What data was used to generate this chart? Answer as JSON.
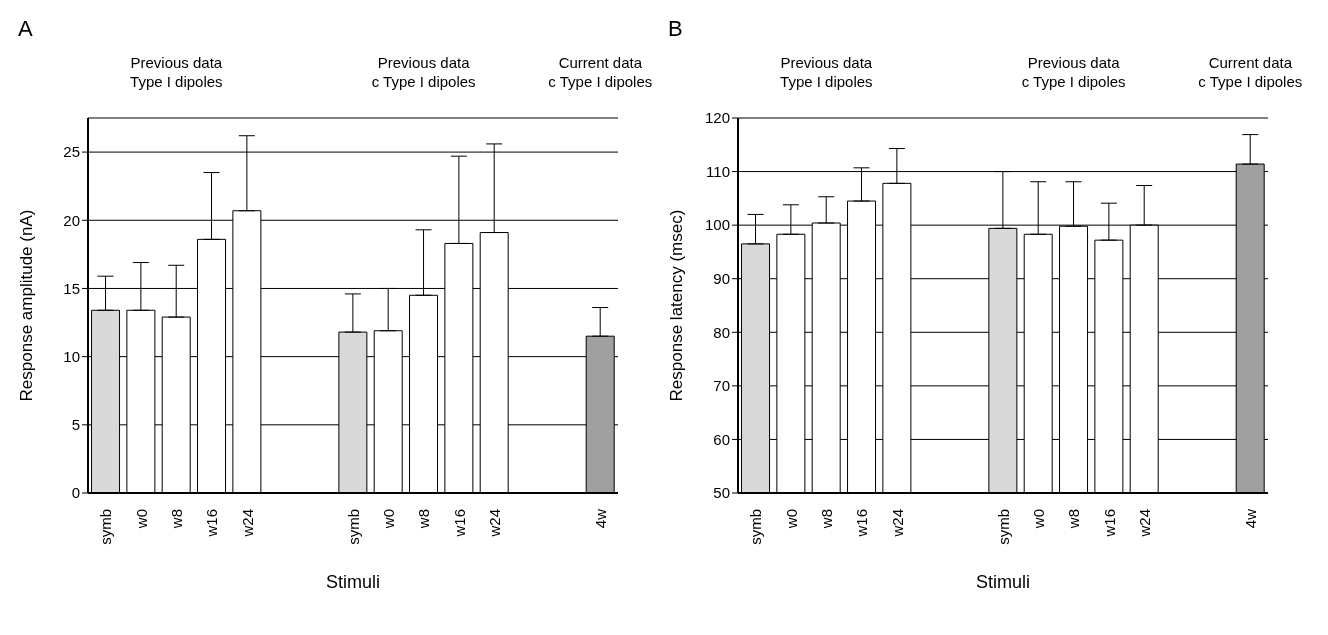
{
  "chart_data": [
    {
      "type": "bar",
      "title": "A",
      "xlabel": "Stimuli",
      "ylabel": "Response amplitude (nA)",
      "annotations": [
        "Previous data\nType I dipoles",
        "Previous data\nc Type I dipoles",
        "Current data\nc Type I dipoles"
      ],
      "categories": [
        "symb",
        "w0",
        "w8",
        "w16",
        "w24",
        null,
        null,
        "symb",
        "w0",
        "w8",
        "w16",
        "w24",
        null,
        null,
        "4w"
      ],
      "values": [
        13.4,
        13.4,
        12.9,
        18.6,
        20.7,
        null,
        null,
        11.8,
        11.9,
        14.5,
        18.3,
        19.1,
        null,
        null,
        11.5
      ],
      "errors": [
        [
          13.4,
          15.9
        ],
        [
          13.4,
          16.9
        ],
        [
          12.9,
          16.7
        ],
        [
          18.6,
          23.5
        ],
        [
          20.7,
          26.2
        ],
        null,
        null,
        [
          11.8,
          14.6
        ],
        [
          11.9,
          15.0
        ],
        [
          14.5,
          19.3
        ],
        [
          18.3,
          24.7
        ],
        [
          19.1,
          25.6
        ],
        null,
        null,
        [
          11.5,
          13.6
        ]
      ],
      "colors": [
        "#d9d9d9",
        "#ffffff",
        "#ffffff",
        "#ffffff",
        "#ffffff",
        null,
        null,
        "#d9d9d9",
        "#ffffff",
        "#ffffff",
        "#ffffff",
        "#ffffff",
        null,
        null,
        "#a0a0a0"
      ],
      "ylim": [
        0,
        27.5
      ],
      "yticks": [
        0,
        5,
        10,
        15,
        20,
        25
      ],
      "grid": "y"
    },
    {
      "type": "bar",
      "title": "B",
      "xlabel": "Stimuli",
      "ylabel": "Response latency (msec)",
      "annotations": [
        "Previous data\nType I dipoles",
        "Previous data\nc Type I dipoles",
        "Current data\nc Type I dipoles"
      ],
      "categories": [
        "symb",
        "w0",
        "w8",
        "w16",
        "w24",
        null,
        null,
        "symb",
        "w0",
        "w8",
        "w16",
        "w24",
        null,
        null,
        "4w"
      ],
      "values": [
        96.5,
        98.3,
        100.4,
        104.5,
        107.8,
        null,
        null,
        99.4,
        98.3,
        99.8,
        97.2,
        100,
        null,
        null,
        111.4
      ],
      "errors": [
        [
          96.5,
          102
        ],
        [
          98.3,
          103.8
        ],
        [
          100.4,
          105.3
        ],
        [
          104.5,
          110.7
        ],
        [
          107.8,
          114.3
        ],
        null,
        null,
        [
          99.4,
          110
        ],
        [
          98.3,
          108.1
        ],
        [
          99.8,
          108.1
        ],
        [
          97.2,
          104.1
        ],
        [
          100,
          107.4
        ],
        null,
        null,
        [
          111.4,
          116.9
        ]
      ],
      "colors": [
        "#d9d9d9",
        "#ffffff",
        "#ffffff",
        "#ffffff",
        "#ffffff",
        null,
        null,
        "#d9d9d9",
        "#ffffff",
        "#ffffff",
        "#ffffff",
        "#ffffff",
        null,
        null,
        "#a0a0a0"
      ],
      "ylim": [
        50,
        120
      ],
      "yticks": [
        50,
        60,
        70,
        80,
        90,
        100,
        110,
        120
      ],
      "grid": "y"
    }
  ]
}
